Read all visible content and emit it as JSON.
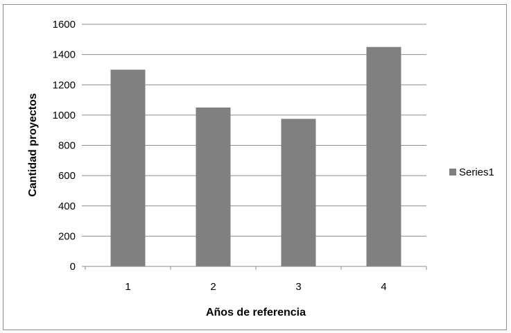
{
  "chart_data": {
    "type": "bar",
    "categories": [
      "1",
      "2",
      "3",
      "4"
    ],
    "series": [
      {
        "name": "Series1",
        "values": [
          1300,
          1050,
          975,
          1450
        ],
        "color": "#808080"
      }
    ],
    "title": "",
    "xlabel": "Años de referencia",
    "ylabel": "Cantidad proyectos",
    "ylim": [
      0,
      1600
    ],
    "yticks": [
      "0",
      "200",
      "400",
      "600",
      "800",
      "1000",
      "1200",
      "1400",
      "1600"
    ],
    "grid": true,
    "legend_position": "right"
  }
}
